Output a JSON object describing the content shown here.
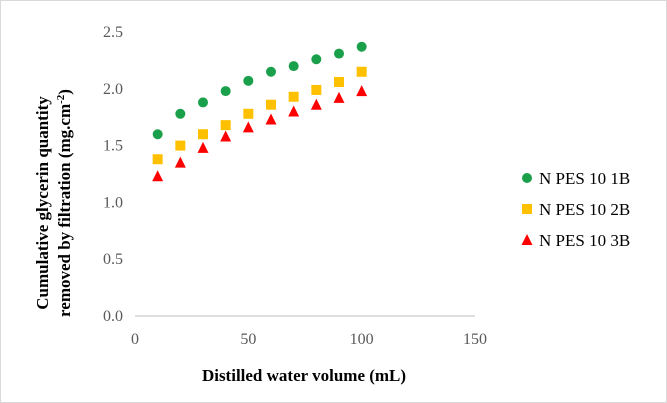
{
  "chart_data": {
    "type": "scatter",
    "xlabel": "Distilled water volume (mL)",
    "ylabel_line1": "Cumulative glycerin quantity",
    "ylabel_line2": "removed by filtration  (mg.cm",
    "ylabel_sup": "-2",
    "ylabel_end": ")",
    "xlim": [
      0,
      150
    ],
    "ylim": [
      0,
      2.5
    ],
    "x_ticks": [
      "0",
      "50",
      "100",
      "150"
    ],
    "y_ticks": [
      "0.0",
      "0.5",
      "1.0",
      "1.5",
      "2.0",
      "2.5"
    ],
    "grid": false,
    "legend_position": "right",
    "series": [
      {
        "name": "N PES 10 1B",
        "marker": "circle",
        "color": "#1aa04a",
        "x": [
          10,
          20,
          30,
          40,
          50,
          60,
          70,
          80,
          90,
          100
        ],
        "y": [
          1.6,
          1.78,
          1.88,
          1.98,
          2.07,
          2.15,
          2.2,
          2.26,
          2.31,
          2.37
        ]
      },
      {
        "name": "N PES 10 2B",
        "marker": "square",
        "color": "#ffc000",
        "x": [
          10,
          20,
          30,
          40,
          50,
          60,
          70,
          80,
          90,
          100
        ],
        "y": [
          1.38,
          1.5,
          1.6,
          1.68,
          1.78,
          1.86,
          1.93,
          1.99,
          2.06,
          2.15
        ]
      },
      {
        "name": "N PES 10 3B",
        "marker": "triangle",
        "color": "#ff0000",
        "x": [
          10,
          20,
          30,
          40,
          50,
          60,
          70,
          80,
          90,
          100
        ],
        "y": [
          1.23,
          1.35,
          1.48,
          1.58,
          1.66,
          1.73,
          1.8,
          1.86,
          1.92,
          1.98
        ]
      }
    ]
  }
}
